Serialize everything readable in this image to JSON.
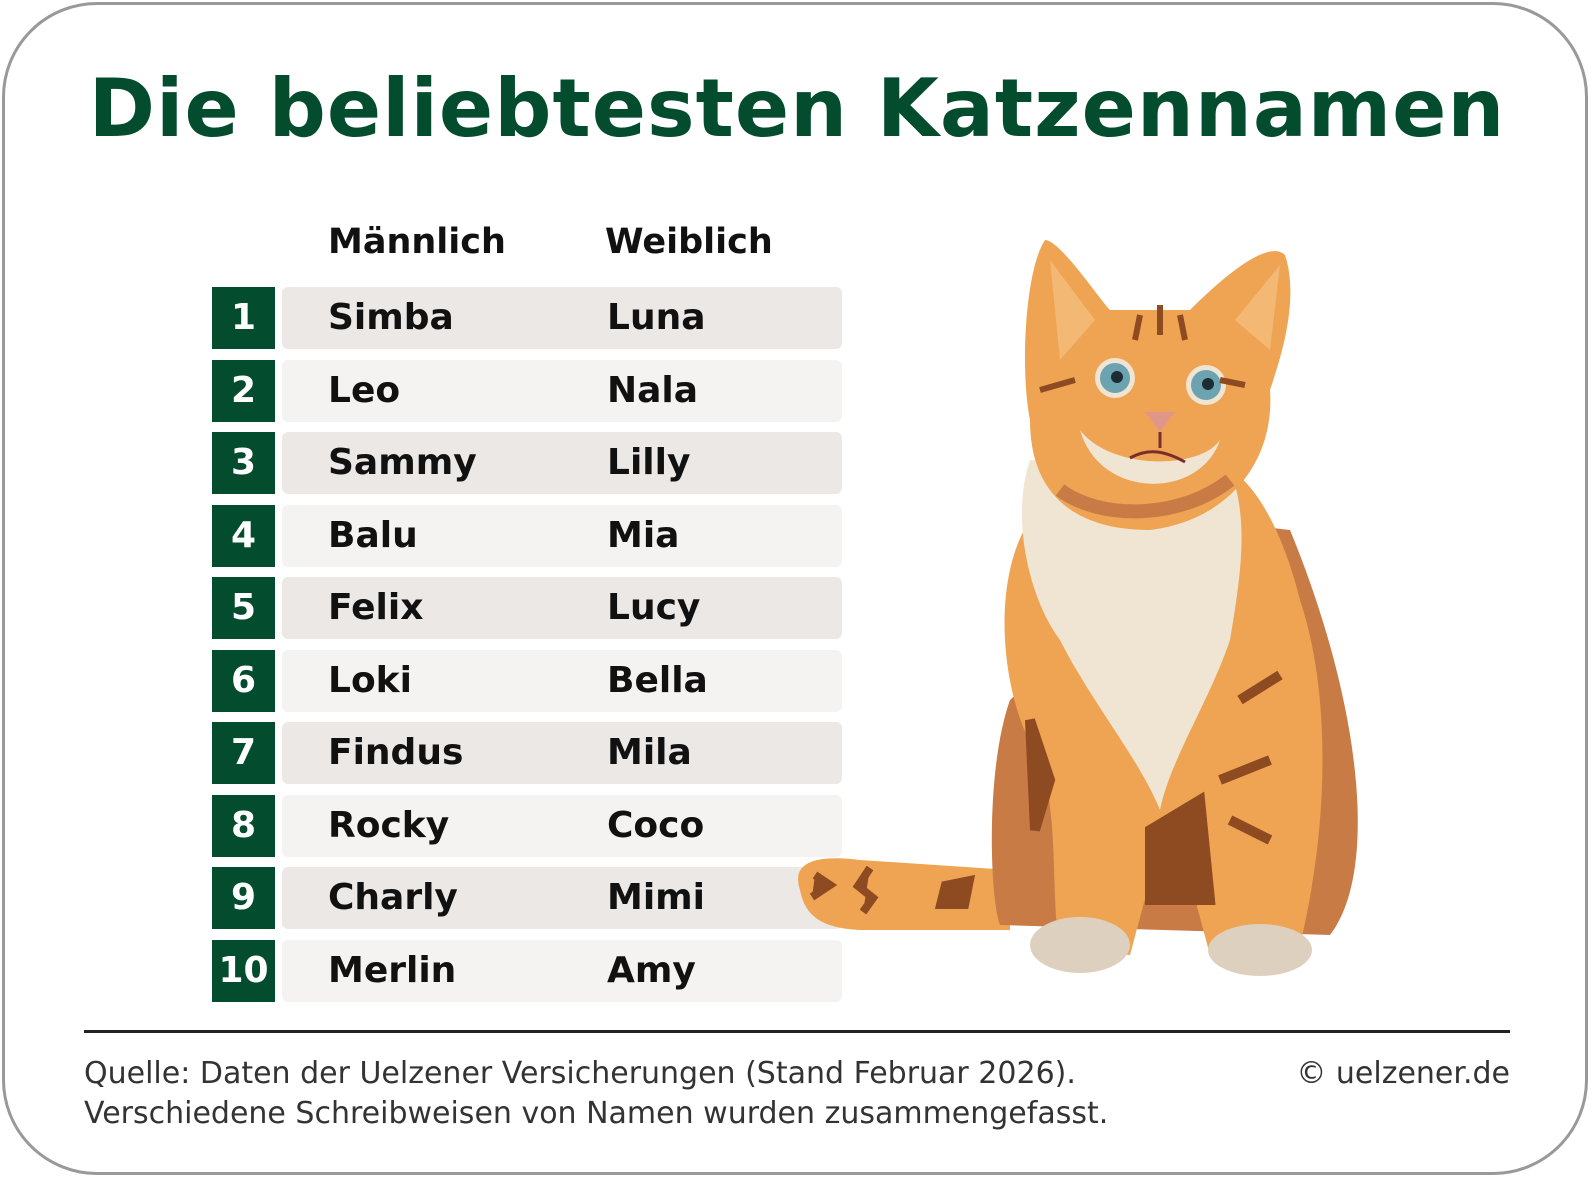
{
  "title": "Die beliebtesten Katzennamen",
  "table": {
    "headers": [
      "Männlich",
      "Weiblich"
    ],
    "rows": [
      [
        1,
        "Simba",
        "Luna"
      ],
      [
        2,
        "Leo",
        "Nala"
      ],
      [
        3,
        "Sammy",
        "Lilly"
      ],
      [
        4,
        "Balu",
        "Mia"
      ],
      [
        5,
        "Felix",
        "Lucy"
      ],
      [
        6,
        "Loki",
        "Bella"
      ],
      [
        7,
        "Findus",
        "Mila"
      ],
      [
        8,
        "Rocky",
        "Coco"
      ],
      [
        9,
        "Charly",
        "Mimi"
      ],
      [
        10,
        "Merlin",
        "Amy"
      ]
    ]
  },
  "footer": {
    "source": [
      "Quelle: Daten der Uelzener Versicherungen (Stand Februar 2026).",
      "Verschiedene Schreibweisen von Namen wurden zusammengefasst."
    ],
    "copyright": "© uelzener.de"
  }
}
